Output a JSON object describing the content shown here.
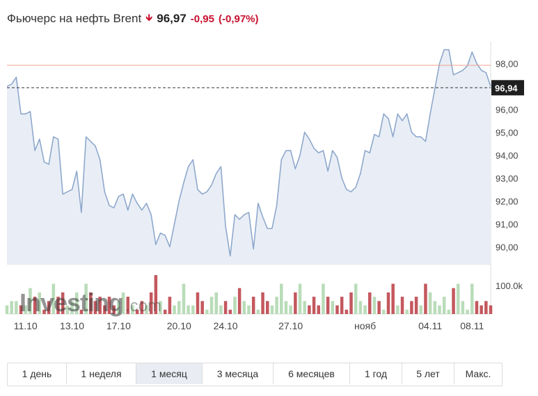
{
  "header": {
    "title": "Фьючерс на нефть Brent",
    "price": "96,97",
    "change": "-0,95",
    "change_percent": "(-0,97%)",
    "direction": "down"
  },
  "colors": {
    "negative": "#c8102e",
    "line": "#8ea8cc",
    "area": "#e9eef6",
    "volume_up": "#b9dcb8",
    "volume_down": "#c3585e",
    "reference_line": "#f0a08a"
  },
  "chart_data": {
    "type": "area",
    "series": [
      {
        "values": [
          97.0,
          97.1,
          97.4,
          95.8,
          95.8,
          95.9,
          94.2,
          94.7,
          93.7,
          93.6,
          94.8,
          94.7,
          92.3,
          92.4,
          92.5,
          93.3,
          91.5,
          94.8,
          94.6,
          94.4,
          93.8,
          92.4,
          91.8,
          91.7,
          92.2,
          92.3,
          91.6,
          92.3,
          91.9,
          91.6,
          91.9,
          91.4,
          90.1,
          90.6,
          90.5,
          90.0,
          91.0,
          92.0,
          92.8,
          93.5,
          93.8,
          92.5,
          92.3,
          92.4,
          92.7,
          93.2,
          93.5,
          90.9,
          89.6,
          91.4,
          91.2,
          91.4,
          91.5,
          89.9,
          91.9,
          91.3,
          90.8,
          90.8,
          91.8,
          93.8,
          94.2,
          94.2,
          93.4,
          94.0,
          95.0,
          94.7,
          94.3,
          94.1,
          94.2,
          93.3,
          94.2,
          93.9,
          93.0,
          92.5,
          92.4,
          92.6,
          93.2,
          94.2,
          94.1,
          94.9,
          94.8,
          95.8,
          95.6,
          94.8,
          95.8,
          95.5,
          95.8,
          95.0,
          94.8,
          94.8,
          94.6,
          95.8,
          96.9,
          98.0,
          98.6,
          98.6,
          97.5,
          97.6,
          97.7,
          97.9,
          98.5,
          98.0,
          97.7,
          97.6,
          97.0
        ],
        "volume": [
          2,
          3,
          3,
          2,
          2,
          6,
          4,
          5,
          1,
          3,
          7,
          4,
          5,
          2,
          3,
          5,
          1,
          7,
          5,
          3,
          4,
          2,
          4,
          2,
          3,
          5,
          4,
          2,
          1,
          3,
          2,
          5,
          9,
          3,
          1,
          4,
          2,
          3,
          7,
          2,
          2,
          5,
          3,
          1,
          4,
          5,
          2,
          3,
          1,
          4,
          6,
          3,
          2,
          4,
          1,
          5,
          3,
          2,
          4,
          7,
          3,
          2,
          5,
          7,
          3,
          2,
          4,
          2,
          7,
          4,
          3,
          2,
          4,
          1,
          5,
          7,
          3,
          2,
          5,
          4,
          3,
          1,
          5,
          7,
          2,
          4,
          1,
          3,
          4,
          2,
          7,
          5,
          3,
          2,
          4,
          1,
          6,
          7,
          3,
          1,
          7,
          3,
          2,
          3,
          2
        ]
      }
    ],
    "y_ticks": [
      "90,00",
      "91,00",
      "92,00",
      "93,00",
      "94,00",
      "95,00",
      "96,00",
      "97,00",
      "98,00"
    ],
    "ylim": [
      89.25,
      98.95
    ],
    "reference_value": 97.92,
    "last_price_label": "96,94",
    "last_price_value": 96.94,
    "volume_tick_label": "100.0k",
    "x_labels": [
      "11.10",
      "13.10",
      "17.10",
      "20.10",
      "24.10",
      "27.10",
      "нояб",
      "04.11",
      "08.11"
    ],
    "x_label_indices": [
      4,
      14,
      24,
      37,
      47,
      61,
      77,
      91,
      100
    ]
  },
  "range_buttons": [
    {
      "label": "1 день"
    },
    {
      "label": "1 неделя"
    },
    {
      "label": "1 месяц",
      "active": true
    },
    {
      "label": "3 месяца"
    },
    {
      "label": "6 месяцев"
    },
    {
      "label": "1 год"
    },
    {
      "label": "5 лет"
    },
    {
      "label": "Макс."
    }
  ]
}
